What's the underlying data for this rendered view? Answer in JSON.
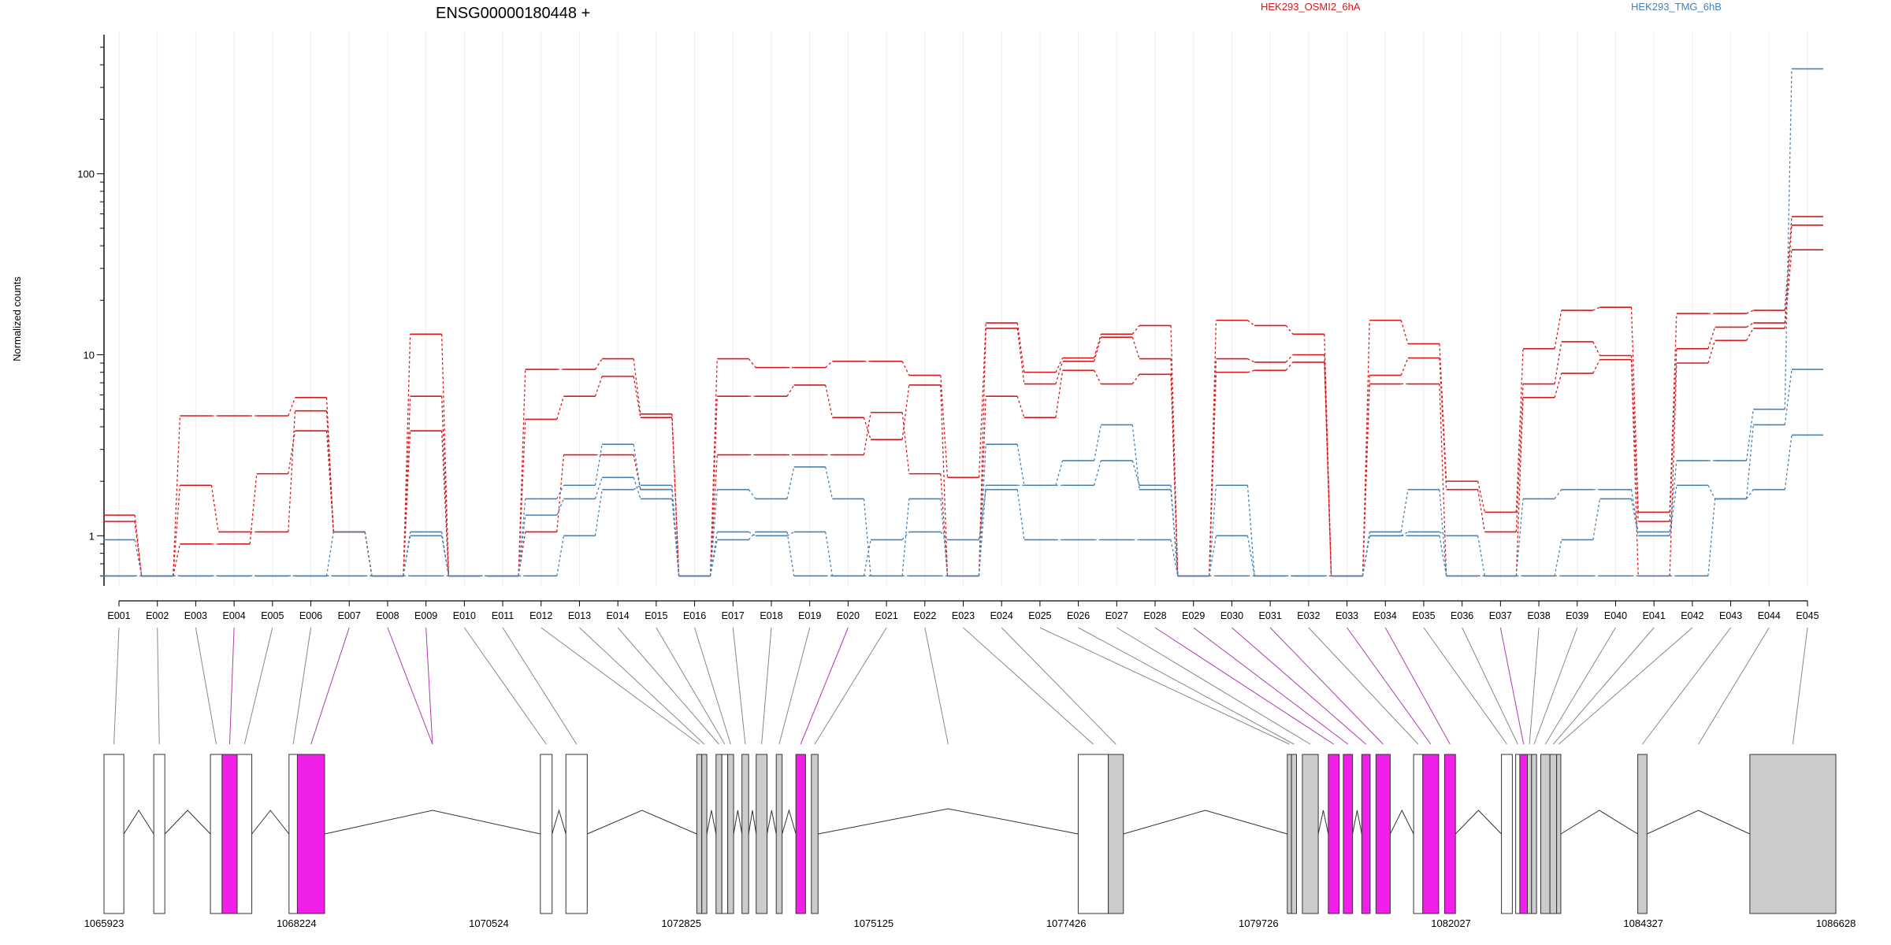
{
  "chart_data": {
    "type": "line",
    "title": "ENSG00000180448 +",
    "ylabel": "Normalized counts",
    "y_scale": "log",
    "ylim": [
      0.55,
      500
    ],
    "yticks": [
      {
        "value": 1,
        "label": "1"
      },
      {
        "value": 10,
        "label": "10"
      },
      {
        "value": 100,
        "label": "100"
      }
    ],
    "grid": "vertical-minor",
    "categories": [
      "E001",
      "E002",
      "E003",
      "E004",
      "E005",
      "E006",
      "E007",
      "E008",
      "E009",
      "E010",
      "E011",
      "E012",
      "E013",
      "E014",
      "E015",
      "E016",
      "E017",
      "E018",
      "E019",
      "E020",
      "E021",
      "E022",
      "E023",
      "E024",
      "E025",
      "E026",
      "E027",
      "E028",
      "E029",
      "E030",
      "E031",
      "E032",
      "E033",
      "E034",
      "E035",
      "E036",
      "E037",
      "E038",
      "E039",
      "E040",
      "E041",
      "E042",
      "E043",
      "E044",
      "E045"
    ],
    "series": [
      {
        "name": "HEK293_OSMI2_6hA",
        "color": "#D7191C",
        "values": [
          1.3,
          0.6,
          4.6,
          4.6,
          4.6,
          5.8,
          1.05,
          0.6,
          13,
          0.6,
          0.6,
          8.3,
          8.3,
          9.5,
          4.7,
          0.6,
          9.5,
          8.5,
          8.5,
          9.2,
          9.2,
          7.7,
          2.1,
          15,
          8.0,
          9.6,
          13,
          14.5,
          0.6,
          15.5,
          14.5,
          13,
          0.6,
          15.5,
          11.5,
          2.0,
          1.35,
          10.8,
          17.6,
          18.3,
          1.35,
          16.9,
          16.9,
          17.6,
          58
        ]
      },
      {
        "color": "#D7191C",
        "values": [
          1.2,
          0.6,
          1.9,
          1.05,
          1.05,
          4.9,
          1.05,
          0.6,
          5.9,
          0.6,
          0.6,
          4.4,
          5.9,
          7.6,
          4.5,
          0.6,
          5.9,
          5.9,
          6.8,
          4.5,
          3.4,
          6.8,
          0.6,
          14,
          6.9,
          9.2,
          12.5,
          9.5,
          0.6,
          9.5,
          9.1,
          10,
          0.6,
          7.7,
          9.6,
          1.8,
          1.05,
          6.9,
          11.8,
          9.9,
          1.2,
          10.8,
          14.2,
          15,
          52
        ]
      },
      {
        "color": "#D7191C",
        "values": [
          0.6,
          0.6,
          0.9,
          0.9,
          2.2,
          3.8,
          1.05,
          0.6,
          3.8,
          0.6,
          0.6,
          1.05,
          2.8,
          2.8,
          1.8,
          0.6,
          2.8,
          2.8,
          2.8,
          2.8,
          4.8,
          2.2,
          0.6,
          5.9,
          4.5,
          8.2,
          6.9,
          7.8,
          0.6,
          8.0,
          8.2,
          9.1,
          0.6,
          6.9,
          6.9,
          0.6,
          0.6,
          5.8,
          7.9,
          9.4,
          0.6,
          9.0,
          12.0,
          14.0,
          38
        ]
      },
      {
        "name": "HEK293_TMG_6hB",
        "color": "#4682B4",
        "values": [
          0.95,
          0.6,
          0.6,
          0.6,
          0.6,
          0.6,
          1.05,
          0.6,
          1.05,
          0.6,
          0.6,
          1.6,
          1.9,
          3.2,
          1.8,
          0.6,
          1.8,
          1.6,
          2.4,
          1.6,
          0.6,
          1.6,
          0.6,
          3.2,
          1.9,
          2.6,
          4.1,
          1.8,
          0.6,
          1.9,
          0.6,
          0.6,
          0.6,
          1.05,
          1.8,
          0.6,
          0.6,
          1.6,
          1.8,
          1.8,
          1.05,
          2.6,
          2.6,
          5.0,
          380
        ]
      },
      {
        "color": "#4682B4",
        "values": [
          0.6,
          0.6,
          0.6,
          0.6,
          0.6,
          0.6,
          0.6,
          0.6,
          1.0,
          0.6,
          0.6,
          1.3,
          1.6,
          2.1,
          1.6,
          0.6,
          1.05,
          1.0,
          1.05,
          0.6,
          0.95,
          1.05,
          0.95,
          1.8,
          0.95,
          0.95,
          0.95,
          0.95,
          0.6,
          1.0,
          0.6,
          0.6,
          0.6,
          1.0,
          1.05,
          1.0,
          0.6,
          0.6,
          0.95,
          1.6,
          1.0,
          1.9,
          1.6,
          4.1,
          8.3
        ]
      },
      {
        "color": "#4682B4",
        "values": [
          0.6,
          0.6,
          0.6,
          0.6,
          0.6,
          0.6,
          0.6,
          0.6,
          0.6,
          0.6,
          0.6,
          0.6,
          1.0,
          1.8,
          1.9,
          0.6,
          0.95,
          1.05,
          0.6,
          0.6,
          0.6,
          0.6,
          0.6,
          1.9,
          1.9,
          1.9,
          2.6,
          1.9,
          0.6,
          0.6,
          0.6,
          0.6,
          0.6,
          1.0,
          1.0,
          0.6,
          0.6,
          0.6,
          0.6,
          0.6,
          0.6,
          0.6,
          1.6,
          1.8,
          3.6
        ]
      }
    ],
    "gene_model": {
      "coordinate_ticks": [
        "1065923",
        "1068224",
        "1070524",
        "1072825",
        "1075125",
        "1077426",
        "1079726",
        "1082027",
        "1084327",
        "1086628"
      ],
      "coordinate_tick_values": [
        1065923,
        1068224,
        1070524,
        1072825,
        1075125,
        1077426,
        1079726,
        1082027,
        1084327,
        1086628
      ],
      "exon_fill_colors": {
        "white": "#FFFFFF",
        "gray": "#CCCCCC",
        "magenta": "#F020E8"
      },
      "exons": [
        {
          "id": "E001",
          "start": 1065923,
          "end": 1066160,
          "fill": "white"
        },
        {
          "id": "E002",
          "start": 1066518,
          "end": 1066650,
          "fill": "white"
        },
        {
          "id": "E003",
          "start": 1067195,
          "end": 1067335,
          "fill": "white"
        },
        {
          "id": "E004",
          "start": 1067335,
          "end": 1067515,
          "fill": "magenta"
        },
        {
          "id": "E005",
          "start": 1067515,
          "end": 1067690,
          "fill": "white"
        },
        {
          "id": "E006",
          "start": 1068135,
          "end": 1068235,
          "fill": "white"
        },
        {
          "id": "E007",
          "start": 1068235,
          "end": 1068560,
          "fill": "magenta"
        },
        {
          "id": "E010",
          "start": 1071140,
          "end": 1071280,
          "fill": "white"
        },
        {
          "id": "E011",
          "start": 1071445,
          "end": 1071700,
          "fill": "white"
        },
        {
          "id": "E012",
          "start": 1073010,
          "end": 1073070,
          "fill": "gray"
        },
        {
          "id": "E013",
          "start": 1073070,
          "end": 1073130,
          "fill": "gray"
        },
        {
          "id": "E014",
          "start": 1073240,
          "end": 1073310,
          "fill": "gray"
        },
        {
          "id": "E015",
          "start": 1073310,
          "end": 1073380,
          "fill": "white"
        },
        {
          "id": "E016",
          "start": 1073380,
          "end": 1073450,
          "fill": "gray"
        },
        {
          "id": "E017",
          "start": 1073550,
          "end": 1073630,
          "fill": "gray"
        },
        {
          "id": "E018",
          "start": 1073720,
          "end": 1073850,
          "fill": "gray"
        },
        {
          "id": "E019",
          "start": 1073960,
          "end": 1074030,
          "fill": "gray"
        },
        {
          "id": "E020",
          "start": 1074195,
          "end": 1074310,
          "fill": "magenta"
        },
        {
          "id": "E021",
          "start": 1074380,
          "end": 1074460,
          "fill": "gray"
        },
        {
          "id": "E023",
          "start": 1077570,
          "end": 1077930,
          "fill": "white"
        },
        {
          "id": "E024",
          "start": 1077930,
          "end": 1078110,
          "fill": "gray"
        },
        {
          "id": "E025",
          "start": 1080070,
          "end": 1080120,
          "fill": "gray"
        },
        {
          "id": "E026",
          "start": 1080120,
          "end": 1080180,
          "fill": "gray"
        },
        {
          "id": "E027",
          "start": 1080250,
          "end": 1080440,
          "fill": "gray"
        },
        {
          "id": "E028",
          "start": 1080560,
          "end": 1080690,
          "fill": "magenta"
        },
        {
          "id": "E029",
          "start": 1080740,
          "end": 1080850,
          "fill": "magenta"
        },
        {
          "id": "E030",
          "start": 1080960,
          "end": 1081060,
          "fill": "magenta"
        },
        {
          "id": "E031",
          "start": 1081130,
          "end": 1081300,
          "fill": "magenta"
        },
        {
          "id": "E032",
          "start": 1081580,
          "end": 1081690,
          "fill": "white"
        },
        {
          "id": "E033",
          "start": 1081690,
          "end": 1081880,
          "fill": "magenta"
        },
        {
          "id": "E034",
          "start": 1081950,
          "end": 1082080,
          "fill": "magenta"
        },
        {
          "id": "E035",
          "start": 1082630,
          "end": 1082760,
          "fill": "white"
        },
        {
          "id": "E036",
          "start": 1082800,
          "end": 1082850,
          "fill": "white"
        },
        {
          "id": "E037",
          "start": 1082850,
          "end": 1082940,
          "fill": "magenta"
        },
        {
          "id": "E038",
          "start": 1082940,
          "end": 1082990,
          "fill": "gray"
        },
        {
          "id": "E039",
          "start": 1082990,
          "end": 1083050,
          "fill": "gray"
        },
        {
          "id": "E040",
          "start": 1083100,
          "end": 1083210,
          "fill": "gray"
        },
        {
          "id": "E041",
          "start": 1083210,
          "end": 1083290,
          "fill": "gray"
        },
        {
          "id": "E042",
          "start": 1083290,
          "end": 1083340,
          "fill": "gray"
        },
        {
          "id": "E043",
          "start": 1084260,
          "end": 1084370,
          "fill": "gray"
        },
        {
          "id": "E045",
          "start": 1085600,
          "end": 1086628,
          "fill": "gray"
        }
      ]
    }
  }
}
